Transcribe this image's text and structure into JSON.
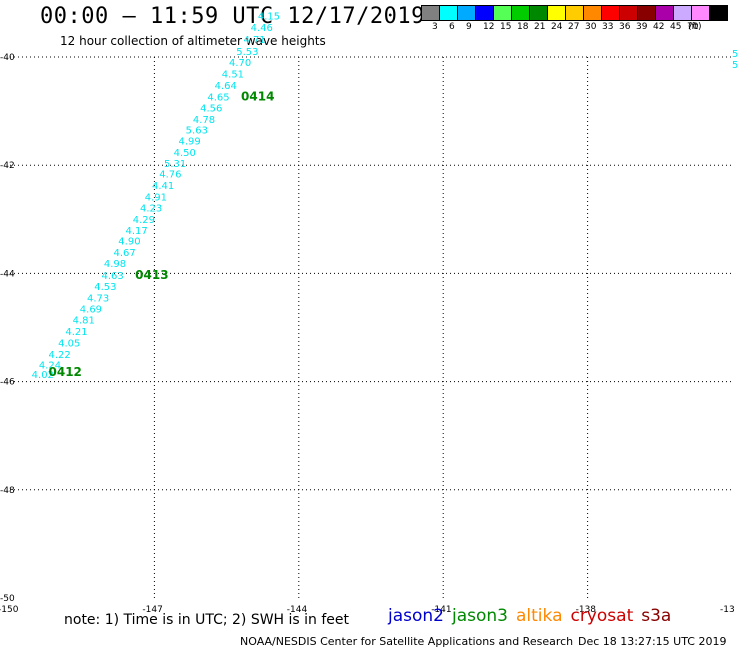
{
  "header": {
    "title": "00:00 – 11:59 UTC 12/17/2019",
    "subtitle": "12 hour collection of altimeter wave heights"
  },
  "legend": {
    "unit": "(ft)",
    "bins": [
      {
        "label": "3",
        "color": "#808080"
      },
      {
        "label": "6",
        "color": "#00ffff"
      },
      {
        "label": "9",
        "color": "#00aaff"
      },
      {
        "label": "12",
        "color": "#0000ff"
      },
      {
        "label": "15",
        "color": "#55ff55"
      },
      {
        "label": "18",
        "color": "#00cc00"
      },
      {
        "label": "21",
        "color": "#008800"
      },
      {
        "label": "24",
        "color": "#ffff00"
      },
      {
        "label": "27",
        "color": "#ffcc00"
      },
      {
        "label": "30",
        "color": "#ff8800"
      },
      {
        "label": "33",
        "color": "#ff0000"
      },
      {
        "label": "36",
        "color": "#cc0000"
      },
      {
        "label": "39",
        "color": "#880000"
      },
      {
        "label": "42",
        "color": "#aa00aa"
      },
      {
        "label": "45",
        "color": "#ccaaff"
      },
      {
        "label": "70",
        "color": "#ff88ff"
      },
      {
        "label": "",
        "color": "#000000"
      }
    ]
  },
  "map": {
    "lon_ticks": [
      "-150",
      "-147",
      "-144",
      "-141",
      "-138",
      "-13"
    ],
    "lat_ticks": [
      "-40",
      "-42",
      "-44",
      "-46",
      "-48",
      "-50"
    ],
    "lon_range": [
      -150,
      -135
    ],
    "lat_range": [
      -50,
      -40
    ],
    "track_color": "#00e5ee",
    "time_color": "#008800",
    "track_readings": [
      {
        "v": "4.02",
        "lon": -149.55,
        "lat": -45.93
      },
      {
        "v": "4.24",
        "lon": -149.4,
        "lat": -45.76
      },
      {
        "v": "4.22",
        "lon": -149.2,
        "lat": -45.56
      },
      {
        "v": "4.05",
        "lon": -149.0,
        "lat": -45.35
      },
      {
        "v": "4.21",
        "lon": -148.85,
        "lat": -45.14
      },
      {
        "v": "4.81",
        "lon": -148.7,
        "lat": -44.93
      },
      {
        "v": "4.69",
        "lon": -148.55,
        "lat": -44.72
      },
      {
        "v": "4.73",
        "lon": -148.4,
        "lat": -44.52
      },
      {
        "v": "4.53",
        "lon": -148.25,
        "lat": -44.31
      },
      {
        "v": "4.63",
        "lon": -148.1,
        "lat": -44.1
      },
      {
        "v": "4.98",
        "lon": -148.05,
        "lat": -43.88
      },
      {
        "v": "4.67",
        "lon": -147.85,
        "lat": -43.68
      },
      {
        "v": "4.90",
        "lon": -147.75,
        "lat": -43.47
      },
      {
        "v": "4.17",
        "lon": -147.6,
        "lat": -43.27
      },
      {
        "v": "4.29",
        "lon": -147.45,
        "lat": -43.07
      },
      {
        "v": "4.23",
        "lon": -147.3,
        "lat": -42.86
      },
      {
        "v": "4.91",
        "lon": -147.2,
        "lat": -42.65
      },
      {
        "v": "4.41",
        "lon": -147.05,
        "lat": -42.44
      },
      {
        "v": "4.76",
        "lon": -146.9,
        "lat": -42.23
      },
      {
        "v": "5.31",
        "lon": -146.8,
        "lat": -42.03
      },
      {
        "v": "4.50",
        "lon": -146.6,
        "lat": -41.83
      },
      {
        "v": "4.99",
        "lon": -146.5,
        "lat": -41.62
      },
      {
        "v": "5.63",
        "lon": -146.35,
        "lat": -41.41
      },
      {
        "v": "4.78",
        "lon": -146.2,
        "lat": -41.22
      },
      {
        "v": "4.56",
        "lon": -146.05,
        "lat": -41.01
      },
      {
        "v": "4.65",
        "lon": -145.9,
        "lat": -40.8
      },
      {
        "v": "4.64",
        "lon": -145.75,
        "lat": -40.59
      },
      {
        "v": "4.51",
        "lon": -145.6,
        "lat": -40.38
      },
      {
        "v": "4.70",
        "lon": -145.45,
        "lat": -40.17
      },
      {
        "v": "5.53",
        "lon": -145.3,
        "lat": -39.96
      },
      {
        "v": "4.71",
        "lon": -145.15,
        "lat": -39.74
      },
      {
        "v": "4.46",
        "lon": -145.0,
        "lat": -39.52
      },
      {
        "v": "4.15",
        "lon": -144.85,
        "lat": -39.31
      }
    ],
    "edge_readings": [
      {
        "v": "5",
        "lon": -135.0,
        "lat": -40.0
      },
      {
        "v": "5",
        "lon": -135.0,
        "lat": -40.2
      }
    ],
    "time_labels": [
      {
        "v": "0412",
        "lon": -149.2,
        "lat": -45.9
      },
      {
        "v": "0413",
        "lon": -147.4,
        "lat": -44.1
      },
      {
        "v": "0414",
        "lon": -145.2,
        "lat": -40.8
      }
    ]
  },
  "footer": {
    "note": "note:  1) Time is in UTC;  2) SWH is in feet",
    "satellites": [
      {
        "name": "jason2",
        "color": "#0000cc"
      },
      {
        "name": "jason3",
        "color": "#008800"
      },
      {
        "name": "altika",
        "color": "#ff8800"
      },
      {
        "name": "cryosat",
        "color": "#cc0000"
      },
      {
        "name": "s3a",
        "color": "#880000"
      }
    ],
    "credit": "NOAA/NESDIS Center for Satellite Applications and Research",
    "timestamp": "Dec 18 13:27:15 UTC 2019"
  }
}
